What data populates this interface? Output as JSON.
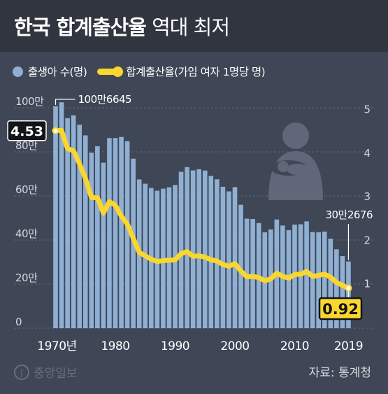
{
  "header": {
    "title_bold": "한국 합계출산율",
    "title_light": "역대 최저"
  },
  "legend": {
    "births_label": "출생아 수(명)",
    "tfr_label": "합계출산율(가임 여자 1명당 명)"
  },
  "colors": {
    "background": "#3f4656",
    "header_bg": "#30353f",
    "bar": "#8fb0d3",
    "line": "#fbd62e"
  },
  "chart_data": {
    "type": "bar+line",
    "x": [
      1970,
      1971,
      1972,
      1973,
      1974,
      1975,
      1976,
      1977,
      1978,
      1979,
      1980,
      1981,
      1982,
      1983,
      1984,
      1985,
      1986,
      1987,
      1988,
      1989,
      1990,
      1991,
      1992,
      1993,
      1994,
      1995,
      1996,
      1997,
      1998,
      1999,
      2000,
      2001,
      2002,
      2003,
      2004,
      2005,
      2006,
      2007,
      2008,
      2009,
      2010,
      2011,
      2012,
      2013,
      2014,
      2015,
      2016,
      2017,
      2018,
      2019
    ],
    "x_tick_labels": [
      "1970년",
      "1980",
      "1990",
      "2000",
      "2010",
      "2019"
    ],
    "x_tick_years": [
      1970,
      1980,
      1990,
      2000,
      2010,
      2019
    ],
    "series": [
      {
        "name": "출생아 수(명)",
        "type": "bar",
        "axis": "left",
        "values": [
          1006645,
          1024773,
          952780,
          965521,
          922823,
          874869,
          796331,
          825339,
          750728,
          862669,
          862835,
          867409,
          848312,
          769155,
          674793,
          655489,
          636019,
          623831,
          633092,
          639431,
          649738,
          709275,
          730678,
          715826,
          721185,
          715020,
          691226,
          675394,
          641594,
          620668,
          640089,
          559934,
          496911,
          495036,
          476958,
          435031,
          448153,
          493189,
          465892,
          444849,
          470171,
          471265,
          484550,
          436455,
          435435,
          438420,
          406243,
          357771,
          326822,
          302676
        ]
      },
      {
        "name": "합계출산율(가임 여자 1명당 명)",
        "type": "line",
        "axis": "right",
        "values": [
          4.53,
          4.54,
          4.12,
          4.07,
          3.77,
          3.43,
          3.0,
          2.99,
          2.64,
          2.9,
          2.82,
          2.57,
          2.39,
          2.06,
          1.74,
          1.66,
          1.58,
          1.53,
          1.55,
          1.56,
          1.57,
          1.71,
          1.76,
          1.65,
          1.66,
          1.63,
          1.57,
          1.54,
          1.46,
          1.42,
          1.48,
          1.31,
          1.18,
          1.19,
          1.16,
          1.09,
          1.13,
          1.26,
          1.19,
          1.15,
          1.23,
          1.24,
          1.3,
          1.19,
          1.21,
          1.24,
          1.17,
          1.05,
          0.98,
          0.92
        ]
      }
    ],
    "y_left": {
      "ticks": [
        "100만",
        "80만",
        "60만",
        "40만",
        "20만",
        "0"
      ],
      "tick_values": [
        1000000,
        800000,
        600000,
        400000,
        200000,
        0
      ],
      "range": [
        0,
        1100000
      ]
    },
    "y_right": {
      "ticks": [
        "5",
        "4",
        "3",
        "2",
        "1"
      ],
      "tick_values": [
        5,
        4,
        3,
        2,
        1
      ],
      "range": [
        0,
        5.5
      ]
    },
    "grid": true,
    "annotations": [
      {
        "text": "100만6645",
        "series": "출생아 수(명)",
        "year": 1970
      },
      {
        "text": "30만2676",
        "series": "출생아 수(명)",
        "year": 2019
      },
      {
        "text": "4.53",
        "series": "합계출산율(가임 여자 1명당 명)",
        "year": 1970
      },
      {
        "text": "0.92",
        "series": "합계출산율(가임 여자 1명당 명)",
        "year": 2019
      }
    ]
  },
  "footer": {
    "logo_mark": "J",
    "logo_text": "중앙일보",
    "source": "자료: 통계청"
  }
}
